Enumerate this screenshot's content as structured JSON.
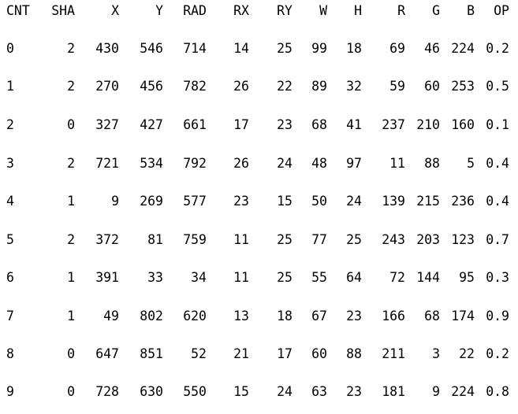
{
  "table": {
    "headers": [
      "CNT",
      "SHA",
      "X",
      "Y",
      "RAD",
      "RX",
      "RY",
      "W",
      "H",
      "R",
      "G",
      "B",
      "OP"
    ],
    "rows": [
      [
        "0",
        "2",
        "430",
        "546",
        "714",
        "14",
        "25",
        "99",
        "18",
        "69",
        "46",
        "224",
        "0.2"
      ],
      [
        "1",
        "2",
        "270",
        "456",
        "782",
        "26",
        "22",
        "89",
        "32",
        "59",
        "60",
        "253",
        "0.5"
      ],
      [
        "2",
        "0",
        "327",
        "427",
        "661",
        "17",
        "23",
        "68",
        "41",
        "237",
        "210",
        "160",
        "0.1"
      ],
      [
        "3",
        "2",
        "721",
        "534",
        "792",
        "26",
        "24",
        "48",
        "97",
        "11",
        "88",
        "5",
        "0.4"
      ],
      [
        "4",
        "1",
        "9",
        "269",
        "577",
        "23",
        "15",
        "50",
        "24",
        "139",
        "215",
        "236",
        "0.4"
      ],
      [
        "5",
        "2",
        "372",
        "81",
        "759",
        "11",
        "25",
        "77",
        "25",
        "243",
        "203",
        "123",
        "0.7"
      ],
      [
        "6",
        "1",
        "391",
        "33",
        "34",
        "11",
        "25",
        "55",
        "64",
        "72",
        "144",
        "95",
        "0.3"
      ],
      [
        "7",
        "1",
        "49",
        "802",
        "620",
        "13",
        "18",
        "67",
        "23",
        "166",
        "68",
        "174",
        "0.9"
      ],
      [
        "8",
        "0",
        "647",
        "851",
        "52",
        "21",
        "17",
        "60",
        "88",
        "211",
        "3",
        "22",
        "0.2"
      ],
      [
        "9",
        "0",
        "728",
        "630",
        "550",
        "15",
        "24",
        "63",
        "23",
        "181",
        "9",
        "224",
        "0.8"
      ]
    ]
  }
}
